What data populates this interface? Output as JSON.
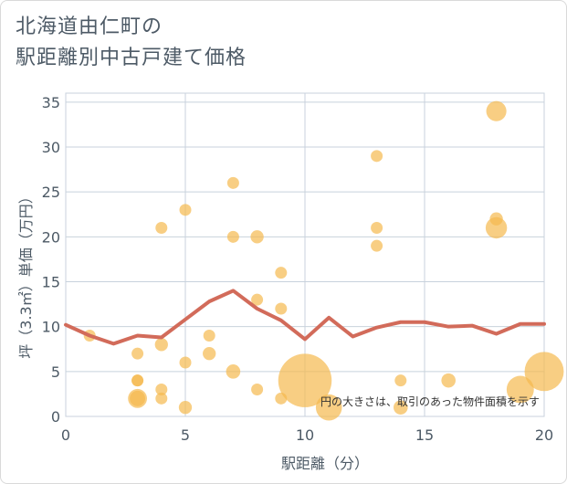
{
  "chart_data": {
    "type": "scatter",
    "title_lines": [
      "北海道由仁町の",
      "駅距離別中古戸建て価格"
    ],
    "xlabel": "駅距離（分）",
    "ylabel": "坪（3.3㎡）単価（万円）",
    "xlim": [
      0,
      20
    ],
    "ylim": [
      0,
      36
    ],
    "x_ticks": [
      0,
      5,
      10,
      15,
      20
    ],
    "y_ticks": [
      0,
      5,
      10,
      15,
      20,
      25,
      30,
      35
    ],
    "grid": true,
    "note": "円の大きさは、取引のあった物件面積を示す",
    "colors": {
      "bubble": "#f5b94e",
      "line": "#d26b5a",
      "grid": "#c8d2dc",
      "axis_text": "#4d5a66"
    },
    "bubbles": [
      {
        "x": 1,
        "y": 9,
        "s": 1
      },
      {
        "x": 3,
        "y": 7,
        "s": 1
      },
      {
        "x": 3,
        "y": 4,
        "s": 1
      },
      {
        "x": 3,
        "y": 4,
        "s": 1
      },
      {
        "x": 3,
        "y": 2,
        "s": 1.6
      },
      {
        "x": 3,
        "y": 2,
        "s": 1.3
      },
      {
        "x": 4,
        "y": 21,
        "s": 1
      },
      {
        "x": 4,
        "y": 8,
        "s": 1.1
      },
      {
        "x": 4,
        "y": 3,
        "s": 1
      },
      {
        "x": 4,
        "y": 2,
        "s": 1
      },
      {
        "x": 5,
        "y": 23,
        "s": 1
      },
      {
        "x": 5,
        "y": 6,
        "s": 1
      },
      {
        "x": 5,
        "y": 1,
        "s": 1.1
      },
      {
        "x": 6,
        "y": 9,
        "s": 1
      },
      {
        "x": 6,
        "y": 7,
        "s": 1.1
      },
      {
        "x": 7,
        "y": 26,
        "s": 1
      },
      {
        "x": 7,
        "y": 20,
        "s": 1
      },
      {
        "x": 7,
        "y": 5,
        "s": 1.2
      },
      {
        "x": 8,
        "y": 20,
        "s": 1.1
      },
      {
        "x": 8,
        "y": 13,
        "s": 1
      },
      {
        "x": 8,
        "y": 3,
        "s": 1
      },
      {
        "x": 9,
        "y": 16,
        "s": 1
      },
      {
        "x": 9,
        "y": 12,
        "s": 1
      },
      {
        "x": 9,
        "y": 2,
        "s": 1
      },
      {
        "x": 10,
        "y": 4,
        "s": 4.5
      },
      {
        "x": 11,
        "y": 1,
        "s": 2.2
      },
      {
        "x": 13,
        "y": 29,
        "s": 1
      },
      {
        "x": 13,
        "y": 21,
        "s": 1
      },
      {
        "x": 13,
        "y": 19,
        "s": 1
      },
      {
        "x": 14,
        "y": 4,
        "s": 1
      },
      {
        "x": 14,
        "y": 1,
        "s": 1.2
      },
      {
        "x": 16,
        "y": 4,
        "s": 1.2
      },
      {
        "x": 18,
        "y": 34,
        "s": 1.7
      },
      {
        "x": 18,
        "y": 22,
        "s": 1.1
      },
      {
        "x": 18,
        "y": 21,
        "s": 1.8
      },
      {
        "x": 19,
        "y": 3,
        "s": 2.3
      },
      {
        "x": 20,
        "y": 5,
        "s": 3.3
      }
    ],
    "line": {
      "x": [
        0,
        1,
        2,
        3,
        4,
        5,
        6,
        7,
        8,
        9,
        10,
        11,
        12,
        13,
        14,
        15,
        16,
        17,
        18,
        19,
        20
      ],
      "y": [
        10.2,
        9.0,
        8.1,
        9.0,
        8.8,
        10.8,
        12.8,
        14.0,
        12.0,
        10.7,
        8.6,
        11.0,
        8.9,
        9.9,
        10.5,
        10.5,
        10.0,
        10.1,
        9.2,
        10.3,
        10.3
      ]
    }
  }
}
